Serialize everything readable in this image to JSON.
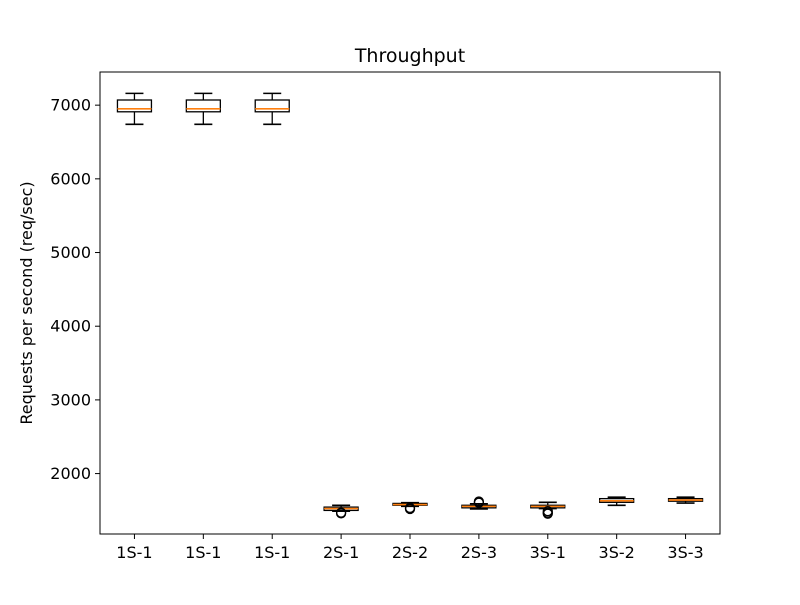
{
  "chart_data": {
    "type": "box",
    "title": "Throughput",
    "xlabel": "",
    "ylabel": "Requests per second (req/sec)",
    "ylim": [
      1180,
      7450
    ],
    "yticks": [
      2000,
      3000,
      4000,
      5000,
      6000,
      7000
    ],
    "grid": false,
    "legend": "none",
    "categories": [
      "1S-1",
      "1S-1",
      "1S-1",
      "2S-1",
      "2S-2",
      "2S-3",
      "3S-1",
      "3S-2",
      "3S-3"
    ],
    "boxes": [
      {
        "label": "1S-1",
        "whislo": 6740,
        "q1": 6910,
        "med": 6950,
        "q3": 7070,
        "whishi": 7160,
        "fliers": []
      },
      {
        "label": "1S-1",
        "whislo": 6740,
        "q1": 6910,
        "med": 6950,
        "q3": 7070,
        "whishi": 7160,
        "fliers": []
      },
      {
        "label": "1S-1",
        "whislo": 6740,
        "q1": 6910,
        "med": 6950,
        "q3": 7070,
        "whishi": 7160,
        "fliers": []
      },
      {
        "label": "2S-1",
        "whislo": 1490,
        "q1": 1500,
        "med": 1525,
        "q3": 1545,
        "whishi": 1570,
        "fliers": [
          1460,
          1470
        ]
      },
      {
        "label": "2S-2",
        "whislo": 1555,
        "q1": 1570,
        "med": 1580,
        "q3": 1595,
        "whishi": 1605,
        "fliers": [
          1520,
          1535
        ]
      },
      {
        "label": "2S-3",
        "whislo": 1520,
        "q1": 1535,
        "med": 1555,
        "q3": 1570,
        "whishi": 1590,
        "fliers": [
          1605,
          1620
        ]
      },
      {
        "label": "3S-1",
        "whislo": 1525,
        "q1": 1535,
        "med": 1555,
        "q3": 1570,
        "whishi": 1610,
        "fliers": [
          1455,
          1470,
          1490
        ]
      },
      {
        "label": "3S-2",
        "whislo": 1570,
        "q1": 1610,
        "med": 1630,
        "q3": 1660,
        "whishi": 1680,
        "fliers": []
      },
      {
        "label": "3S-3",
        "whislo": 1600,
        "q1": 1625,
        "med": 1640,
        "q3": 1660,
        "whishi": 1680,
        "fliers": []
      }
    ],
    "colors": {
      "median": "#ff7f0e",
      "box": "#000000",
      "axes": "#000000",
      "background": "#ffffff"
    }
  }
}
